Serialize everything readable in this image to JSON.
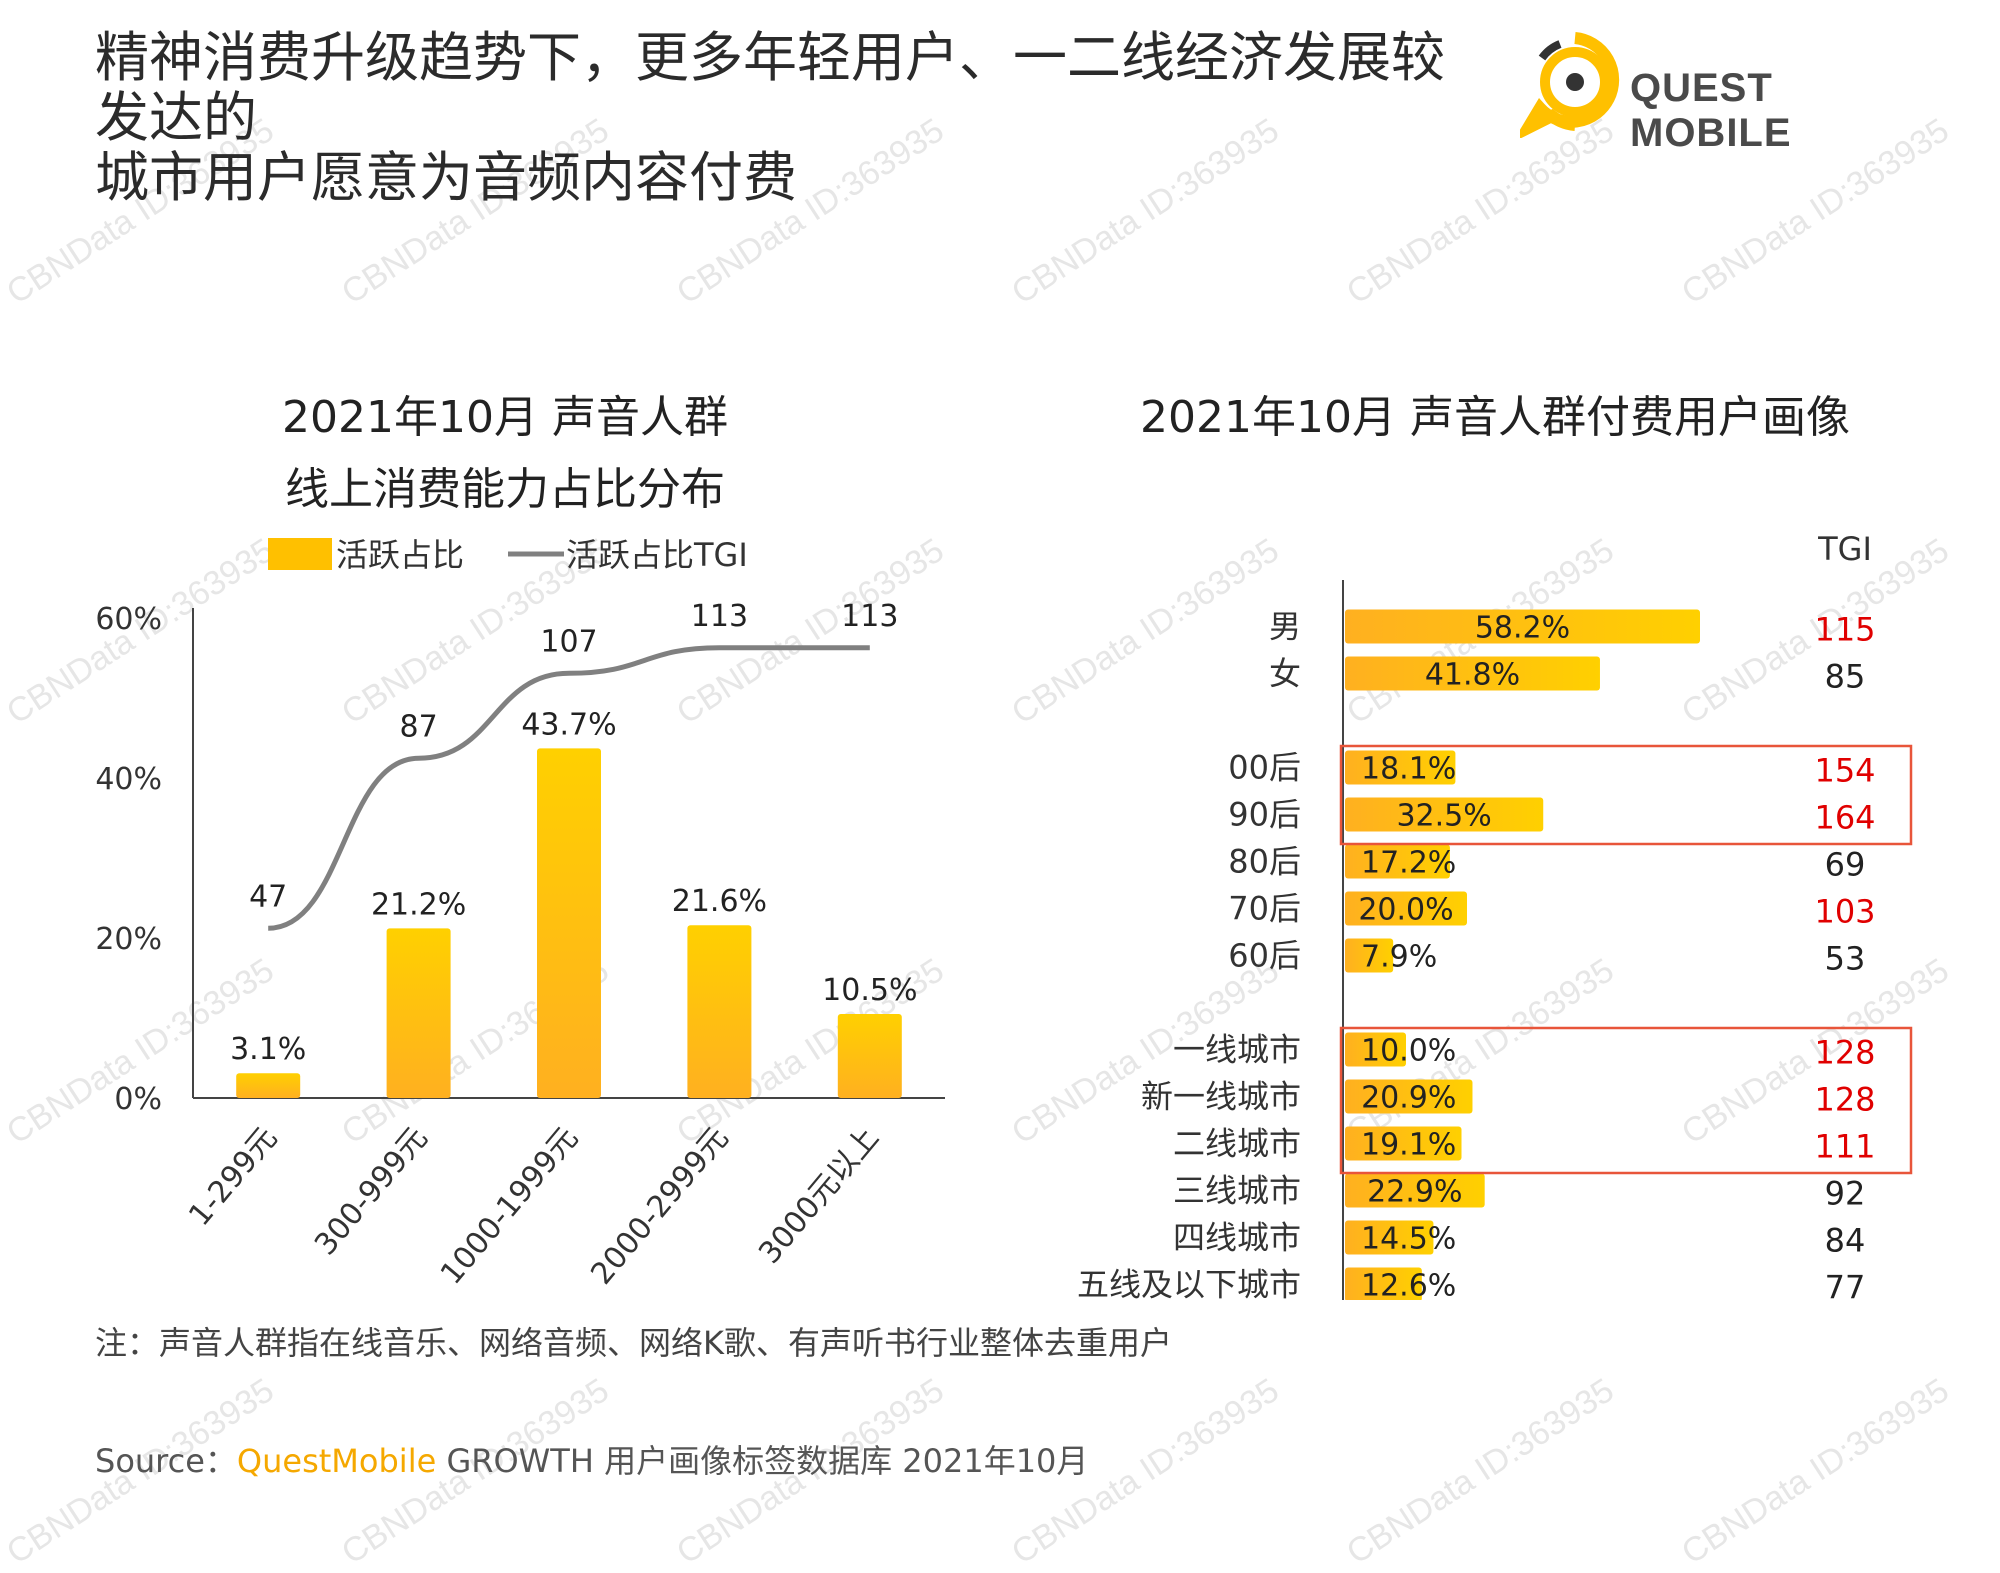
{
  "title_line1": "精神消费升级趋势下，更多年轻用户、一二线经济发展较发达的",
  "title_line2": "城市用户愿意为音频内容付费",
  "logo_text": "QUEST MOBILE",
  "watermark": "CBNData ID:363935",
  "colors": {
    "bar": "#ffc000",
    "line": "#808080",
    "highlight_red": "#e00000",
    "box": "#e8553a",
    "brand": "#f5a800"
  },
  "chart_data": [
    {
      "type": "bar",
      "title_line1": "2021年10月 声音人群",
      "title_line2": "线上消费能力占比分布",
      "legend": [
        "活跃占比",
        "活跃占比TGI"
      ],
      "categories": [
        "1-299元",
        "300-999元",
        "1000-1999元",
        "2000-2999元",
        "3000元以上"
      ],
      "values": [
        3.1,
        21.2,
        43.7,
        21.6,
        10.5
      ],
      "value_labels": [
        "3.1%",
        "21.2%",
        "43.7%",
        "21.6%",
        "10.5%"
      ],
      "tgi": [
        47,
        87,
        107,
        113,
        113
      ],
      "y_ticks": [
        "0%",
        "20%",
        "40%",
        "60%"
      ],
      "ylim": [
        0,
        60
      ]
    },
    {
      "type": "bar",
      "orientation": "horizontal",
      "title": "2021年10月 声音人群付费用户画像",
      "tgi_header": "TGI",
      "xlim": [
        0,
        60
      ],
      "groups": [
        {
          "rows": [
            {
              "label": "男",
              "value": 58.2,
              "value_label": "58.2%",
              "tgi": "115",
              "tgi_red": true
            },
            {
              "label": "女",
              "value": 41.8,
              "value_label": "41.8%",
              "tgi": "85",
              "tgi_red": false
            }
          ]
        },
        {
          "rows": [
            {
              "label": "00后",
              "value": 18.1,
              "value_label": "18.1%",
              "tgi": "154",
              "tgi_red": true,
              "boxed": true
            },
            {
              "label": "90后",
              "value": 32.5,
              "value_label": "32.5%",
              "tgi": "164",
              "tgi_red": true,
              "boxed": true
            },
            {
              "label": "80后",
              "value": 17.2,
              "value_label": "17.2%",
              "tgi": "69",
              "tgi_red": false
            },
            {
              "label": "70后",
              "value": 20.0,
              "value_label": "20.0%",
              "tgi": "103",
              "tgi_red": true
            },
            {
              "label": "60后",
              "value": 7.9,
              "value_label": "7.9%",
              "tgi": "53",
              "tgi_red": false
            }
          ]
        },
        {
          "rows": [
            {
              "label": "一线城市",
              "value": 10.0,
              "value_label": "10.0%",
              "tgi": "128",
              "tgi_red": true,
              "boxed": true
            },
            {
              "label": "新一线城市",
              "value": 20.9,
              "value_label": "20.9%",
              "tgi": "128",
              "tgi_red": true,
              "boxed": true
            },
            {
              "label": "二线城市",
              "value": 19.1,
              "value_label": "19.1%",
              "tgi": "111",
              "tgi_red": true,
              "boxed": true
            },
            {
              "label": "三线城市",
              "value": 22.9,
              "value_label": "22.9%",
              "tgi": "92",
              "tgi_red": false
            },
            {
              "label": "四线城市",
              "value": 14.5,
              "value_label": "14.5%",
              "tgi": "84",
              "tgi_red": false
            },
            {
              "label": "五线及以下城市",
              "value": 12.6,
              "value_label": "12.6%",
              "tgi": "77",
              "tgi_red": false
            }
          ]
        }
      ]
    }
  ],
  "note": "注：声音人群指在线音乐、网络音频、网络K歌、有声听书行业整体去重用户",
  "source_prefix": "Source：",
  "source_brand": "QuestMobile",
  "source_rest": " GROWTH 用户画像标签数据库 2021年10月"
}
